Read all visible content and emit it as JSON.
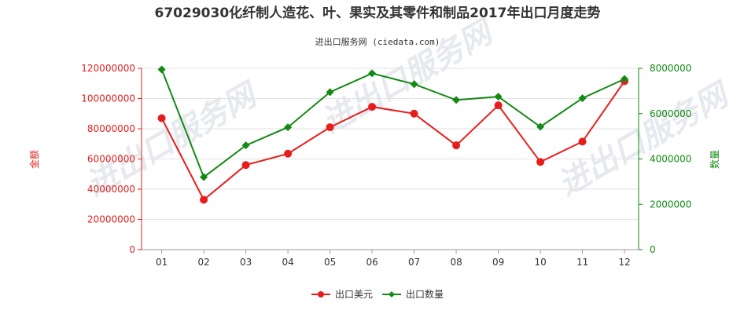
{
  "chart_data": {
    "type": "line",
    "title": "67029030化纤制人造花、叶、果实及其零件和制品2017年出口月度走势",
    "subtitle": "进出口服务网 (ciedata.com)",
    "categories": [
      "01",
      "02",
      "03",
      "04",
      "05",
      "06",
      "07",
      "08",
      "09",
      "10",
      "11",
      "12"
    ],
    "y_left": {
      "label": "金额",
      "ticks": [
        "0",
        "20000000",
        "40000000",
        "60000000",
        "80000000",
        "100000000",
        "120000000"
      ],
      "range": [
        0,
        120000000
      ],
      "color": "#e02020"
    },
    "y_right": {
      "label": "数量",
      "ticks": [
        "0",
        "2000000",
        "4000000",
        "6000000",
        "8000000"
      ],
      "range": [
        0,
        8000000
      ],
      "color": "#108a10"
    },
    "series": [
      {
        "name": "出口美元",
        "axis": "left",
        "color": "#e81c1c",
        "values": [
          87000000,
          33000000,
          56000000,
          63500000,
          81000000,
          94500000,
          90000000,
          69000000,
          95500000,
          58000000,
          71500000,
          111500000
        ]
      },
      {
        "name": "出口数量",
        "axis": "right",
        "color": "#138a13",
        "values": [
          7950000,
          3200000,
          4600000,
          5400000,
          6950000,
          7780000,
          7300000,
          6600000,
          6750000,
          5420000,
          6680000,
          7530000
        ]
      }
    ],
    "legend_position": "bottom-center",
    "watermark": "进出口服务网"
  }
}
